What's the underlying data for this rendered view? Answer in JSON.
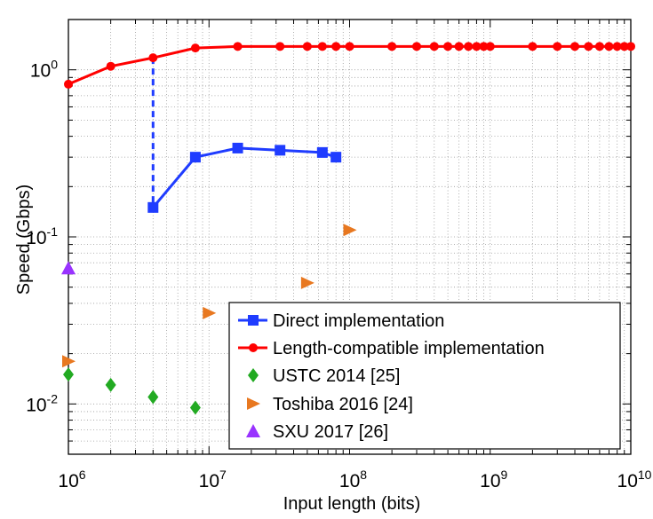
{
  "chart_data": {
    "type": "line",
    "xscale": "log",
    "yscale": "log",
    "xlabel": "Input length (bits)",
    "ylabel": "Speed (Gbps)",
    "xlim": [
      1000000,
      10000000000
    ],
    "ylim": [
      0.005,
      2.0
    ],
    "grid": true,
    "legend_position": "bottom-right",
    "x_ticks": [
      {
        "value": 1000000,
        "base": "10",
        "exp": "6"
      },
      {
        "value": 10000000,
        "base": "10",
        "exp": "7"
      },
      {
        "value": 100000000,
        "base": "10",
        "exp": "8"
      },
      {
        "value": 1000000000,
        "base": "10",
        "exp": "9"
      },
      {
        "value": 10000000000,
        "base": "10",
        "exp": "10"
      }
    ],
    "y_ticks": [
      {
        "value": 0.01,
        "base": "10",
        "exp": "-2"
      },
      {
        "value": 0.1,
        "base": "10",
        "exp": "-1"
      },
      {
        "value": 1,
        "base": "10",
        "exp": "0"
      }
    ],
    "series": [
      {
        "name": "Direct implementation",
        "color": "#1f3cff",
        "marker": "square",
        "line": "solid",
        "x": [
          4000000,
          8000000,
          16000000,
          32000000,
          64000000,
          80000000
        ],
        "y": [
          0.15,
          0.3,
          0.34,
          0.33,
          0.32,
          0.3
        ]
      },
      {
        "name": "Length-compatible implementation",
        "color": "#ff0000",
        "marker": "circle",
        "line": "solid",
        "x": [
          1000000,
          2000000,
          4000000,
          8000000,
          16000000,
          32000000,
          50000000,
          64000000,
          80000000,
          100000000,
          200000000,
          300000000,
          400000000,
          500000000,
          600000000,
          700000000,
          800000000,
          900000000,
          1000000000,
          2000000000,
          3000000000,
          4000000000,
          5000000000,
          6000000000,
          7000000000,
          8000000000,
          9000000000,
          10000000000
        ],
        "y": [
          0.82,
          1.05,
          1.18,
          1.35,
          1.38,
          1.38,
          1.38,
          1.38,
          1.38,
          1.38,
          1.38,
          1.38,
          1.38,
          1.38,
          1.38,
          1.38,
          1.38,
          1.38,
          1.38,
          1.38,
          1.38,
          1.38,
          1.38,
          1.38,
          1.38,
          1.38,
          1.38,
          1.38
        ]
      },
      {
        "name": "USTC 2014 [25]",
        "color": "#22aa22",
        "marker": "diamond",
        "line": "none",
        "x": [
          1000000,
          2000000,
          4000000,
          8000000
        ],
        "y": [
          0.015,
          0.013,
          0.011,
          0.0095
        ]
      },
      {
        "name": "Toshiba 2016 [24]",
        "color": "#e87820",
        "marker": "triangle-right",
        "line": "none",
        "x": [
          1000000,
          10000000,
          50000000,
          100000000
        ],
        "y": [
          0.018,
          0.035,
          0.053,
          0.11
        ]
      },
      {
        "name": "SXU 2017 [26]",
        "color": "#9933ff",
        "marker": "triangle-up",
        "line": "none",
        "x": [
          1000000
        ],
        "y": [
          0.065
        ]
      }
    ],
    "annotations": [
      {
        "type": "dashed-connector",
        "series": "Direct implementation",
        "color": "#1f3cff",
        "x": [
          4000000,
          4000000
        ],
        "y": [
          1.18,
          0.15
        ]
      }
    ]
  }
}
